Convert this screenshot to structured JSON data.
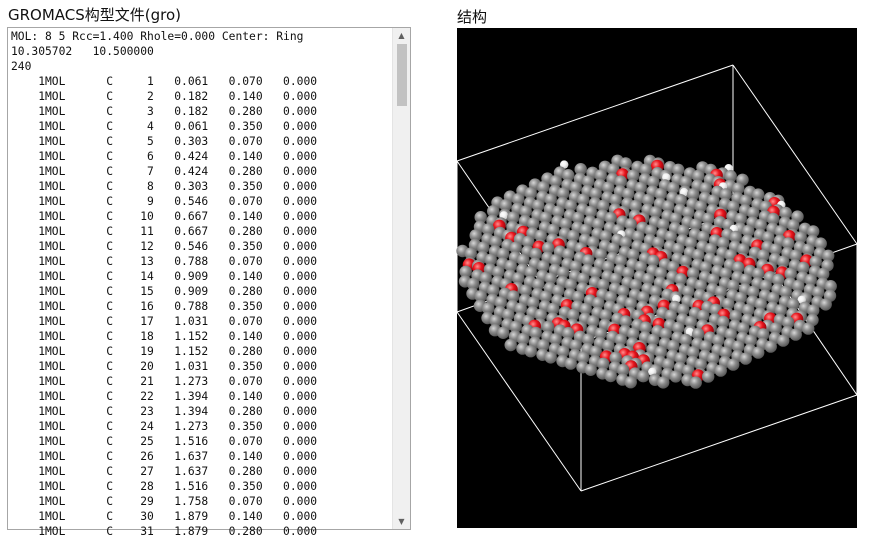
{
  "gro_panel": {
    "title": "GROMACS构型文件(gro)",
    "header_lines": [
      "MOL: 8 5 Rcc=1.400 Rhole=0.000 Center: Ring",
      "10.305702   10.500000",
      "240"
    ],
    "atoms": [
      {
        "res": "1MOL",
        "name": "C",
        "id": "1",
        "x": "0.061",
        "y": "0.070",
        "z": "0.000"
      },
      {
        "res": "1MOL",
        "name": "C",
        "id": "2",
        "x": "0.182",
        "y": "0.140",
        "z": "0.000"
      },
      {
        "res": "1MOL",
        "name": "C",
        "id": "3",
        "x": "0.182",
        "y": "0.280",
        "z": "0.000"
      },
      {
        "res": "1MOL",
        "name": "C",
        "id": "4",
        "x": "0.061",
        "y": "0.350",
        "z": "0.000"
      },
      {
        "res": "1MOL",
        "name": "C",
        "id": "5",
        "x": "0.303",
        "y": "0.070",
        "z": "0.000"
      },
      {
        "res": "1MOL",
        "name": "C",
        "id": "6",
        "x": "0.424",
        "y": "0.140",
        "z": "0.000"
      },
      {
        "res": "1MOL",
        "name": "C",
        "id": "7",
        "x": "0.424",
        "y": "0.280",
        "z": "0.000"
      },
      {
        "res": "1MOL",
        "name": "C",
        "id": "8",
        "x": "0.303",
        "y": "0.350",
        "z": "0.000"
      },
      {
        "res": "1MOL",
        "name": "C",
        "id": "9",
        "x": "0.546",
        "y": "0.070",
        "z": "0.000"
      },
      {
        "res": "1MOL",
        "name": "C",
        "id": "10",
        "x": "0.667",
        "y": "0.140",
        "z": "0.000"
      },
      {
        "res": "1MOL",
        "name": "C",
        "id": "11",
        "x": "0.667",
        "y": "0.280",
        "z": "0.000"
      },
      {
        "res": "1MOL",
        "name": "C",
        "id": "12",
        "x": "0.546",
        "y": "0.350",
        "z": "0.000"
      },
      {
        "res": "1MOL",
        "name": "C",
        "id": "13",
        "x": "0.788",
        "y": "0.070",
        "z": "0.000"
      },
      {
        "res": "1MOL",
        "name": "C",
        "id": "14",
        "x": "0.909",
        "y": "0.140",
        "z": "0.000"
      },
      {
        "res": "1MOL",
        "name": "C",
        "id": "15",
        "x": "0.909",
        "y": "0.280",
        "z": "0.000"
      },
      {
        "res": "1MOL",
        "name": "C",
        "id": "16",
        "x": "0.788",
        "y": "0.350",
        "z": "0.000"
      },
      {
        "res": "1MOL",
        "name": "C",
        "id": "17",
        "x": "1.031",
        "y": "0.070",
        "z": "0.000"
      },
      {
        "res": "1MOL",
        "name": "C",
        "id": "18",
        "x": "1.152",
        "y": "0.140",
        "z": "0.000"
      },
      {
        "res": "1MOL",
        "name": "C",
        "id": "19",
        "x": "1.152",
        "y": "0.280",
        "z": "0.000"
      },
      {
        "res": "1MOL",
        "name": "C",
        "id": "20",
        "x": "1.031",
        "y": "0.350",
        "z": "0.000"
      },
      {
        "res": "1MOL",
        "name": "C",
        "id": "21",
        "x": "1.273",
        "y": "0.070",
        "z": "0.000"
      },
      {
        "res": "1MOL",
        "name": "C",
        "id": "22",
        "x": "1.394",
        "y": "0.140",
        "z": "0.000"
      },
      {
        "res": "1MOL",
        "name": "C",
        "id": "23",
        "x": "1.394",
        "y": "0.280",
        "z": "0.000"
      },
      {
        "res": "1MOL",
        "name": "C",
        "id": "24",
        "x": "1.273",
        "y": "0.350",
        "z": "0.000"
      },
      {
        "res": "1MOL",
        "name": "C",
        "id": "25",
        "x": "1.516",
        "y": "0.070",
        "z": "0.000"
      },
      {
        "res": "1MOL",
        "name": "C",
        "id": "26",
        "x": "1.637",
        "y": "0.140",
        "z": "0.000"
      },
      {
        "res": "1MOL",
        "name": "C",
        "id": "27",
        "x": "1.637",
        "y": "0.280",
        "z": "0.000"
      },
      {
        "res": "1MOL",
        "name": "C",
        "id": "28",
        "x": "1.516",
        "y": "0.350",
        "z": "0.000"
      },
      {
        "res": "1MOL",
        "name": "C",
        "id": "29",
        "x": "1.758",
        "y": "0.070",
        "z": "0.000"
      },
      {
        "res": "1MOL",
        "name": "C",
        "id": "30",
        "x": "1.879",
        "y": "0.140",
        "z": "0.000"
      },
      {
        "res": "1MOL",
        "name": "C",
        "id": "31",
        "x": "1.879",
        "y": "0.280",
        "z": "0.000"
      }
    ]
  },
  "structure_panel": {
    "title": "结构",
    "background": "#000000",
    "box_color": "#ffffff",
    "atom_colors": {
      "C": "#8c8c8c",
      "O": "#e8141c",
      "H": "#f2f2f2"
    }
  },
  "colors": {
    "scroll_track": "#f0f0f0",
    "scroll_thumb": "#c2c2c2",
    "border": "#a6a6a6"
  }
}
